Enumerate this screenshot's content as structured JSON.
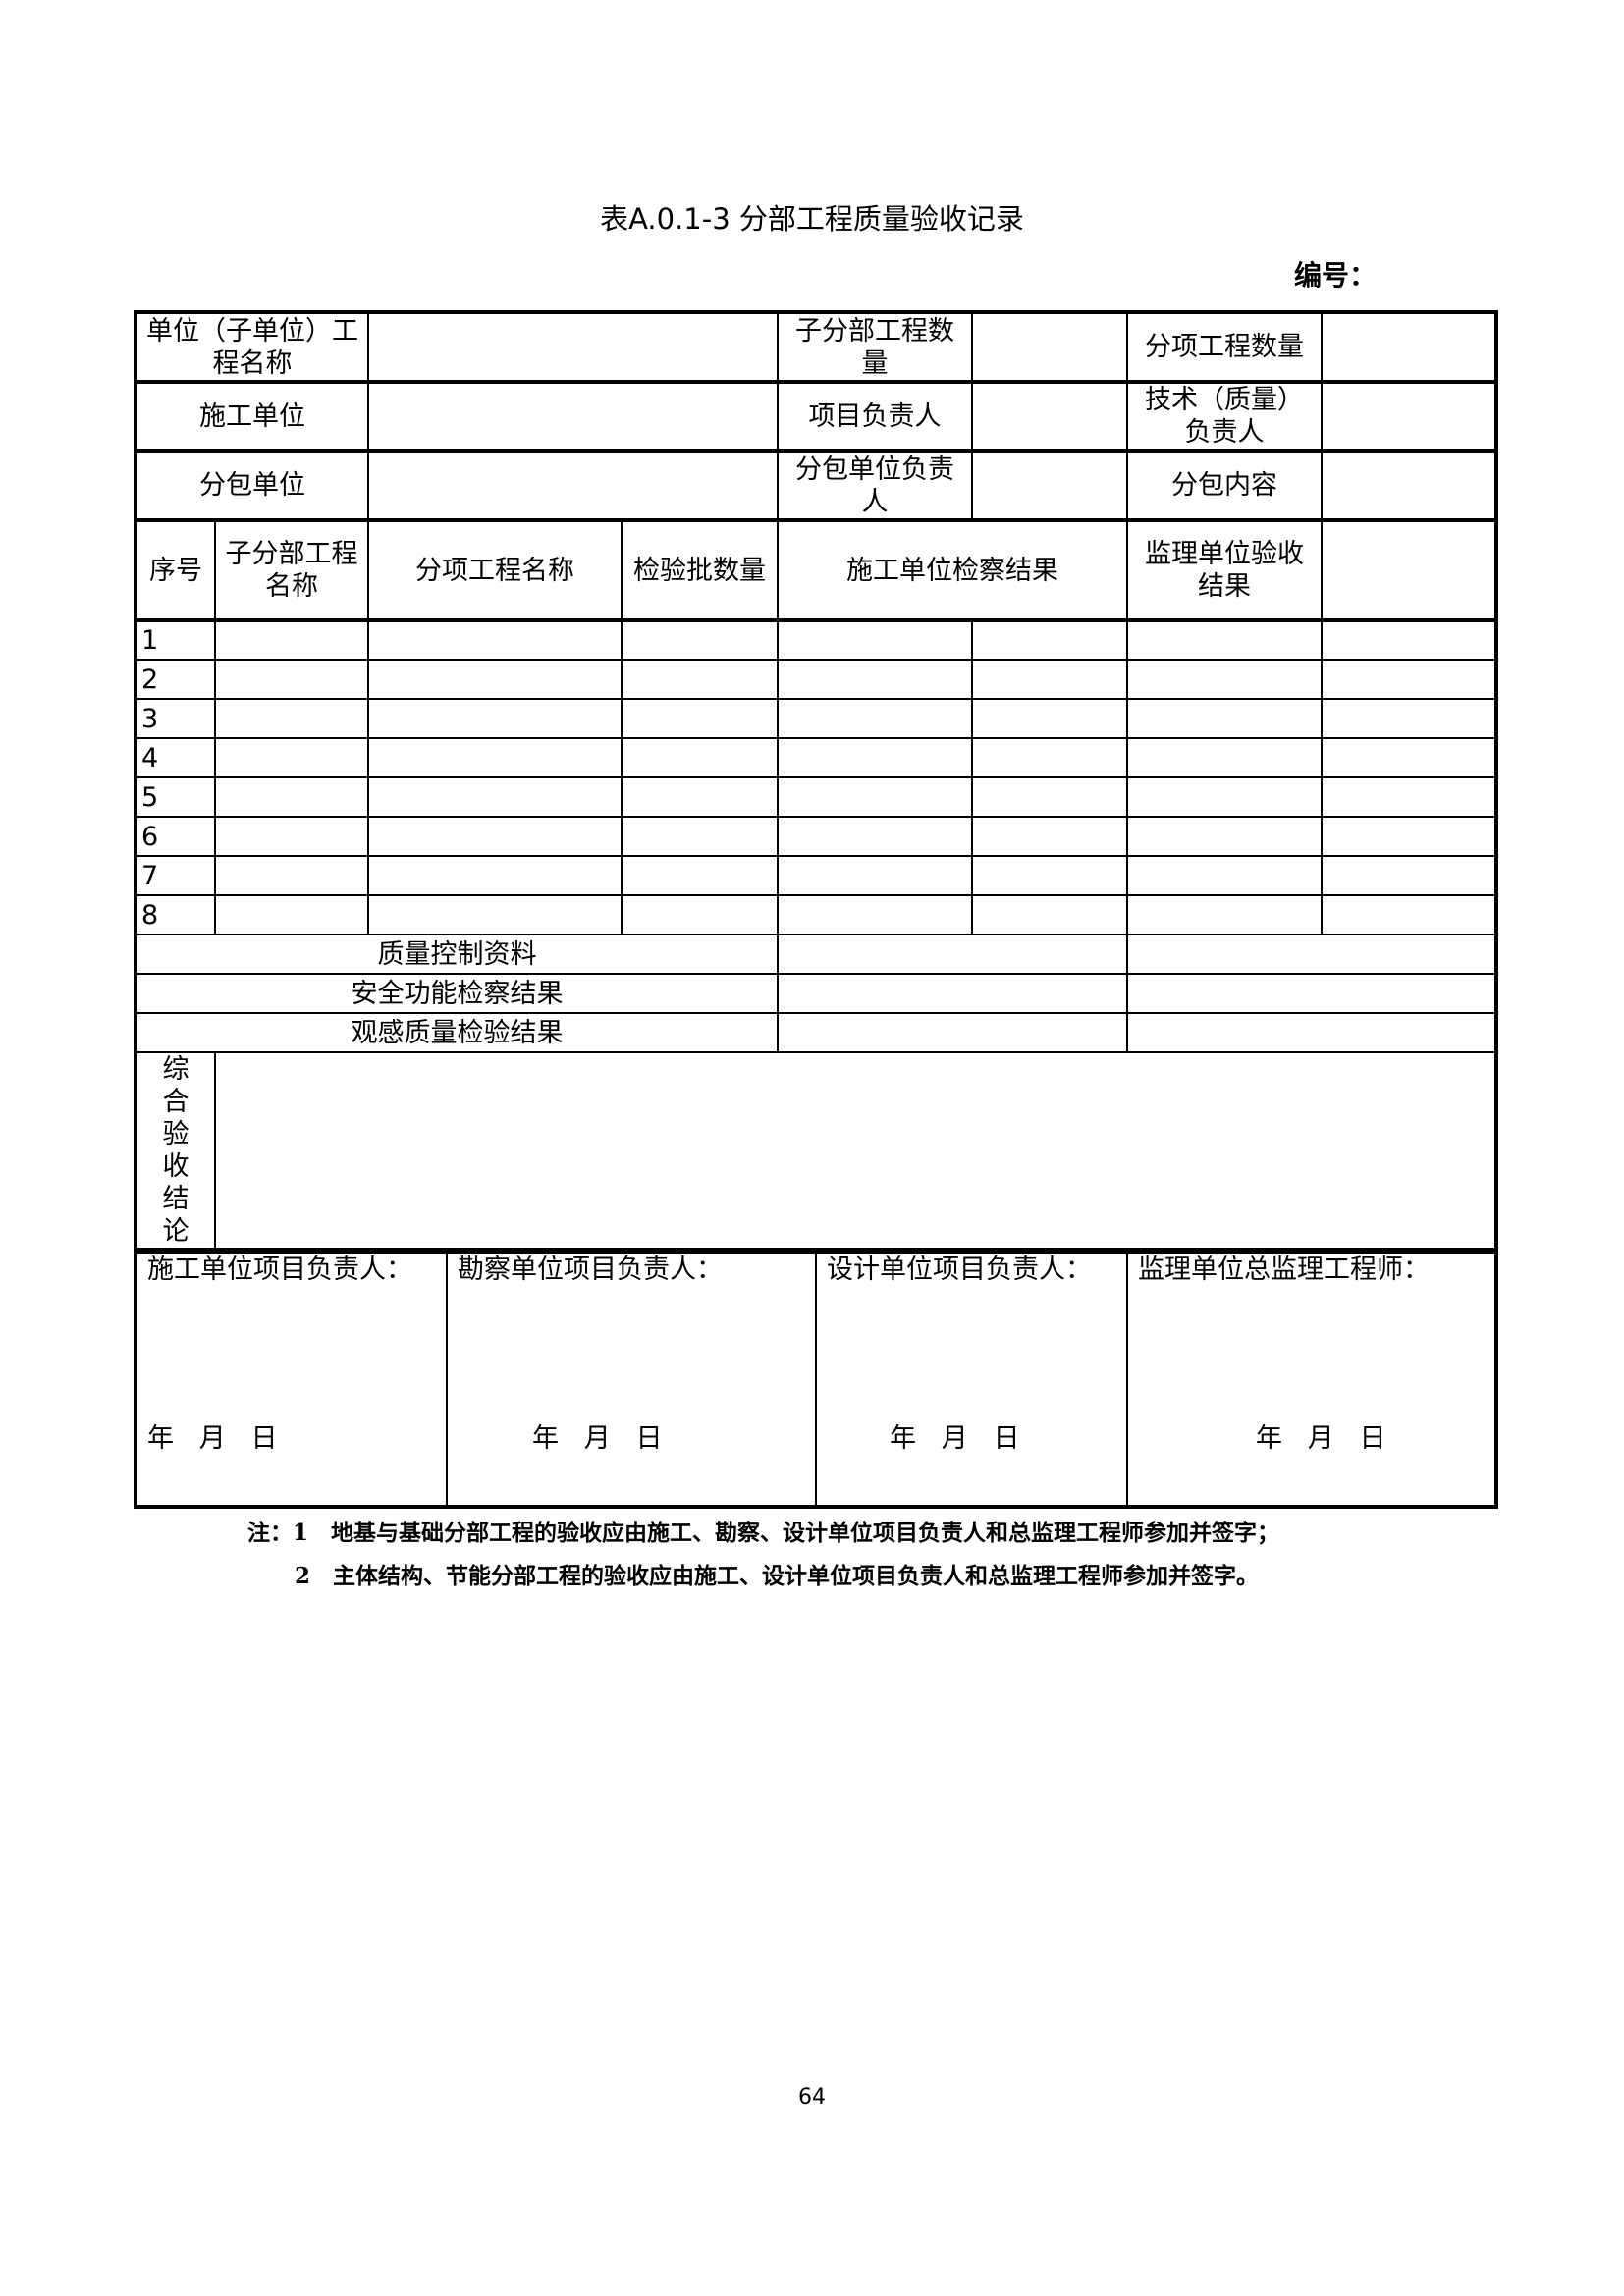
{
  "title": "表A.0.1-3 分部工程质量验收记录",
  "code_label": "编号：",
  "info_rows": [
    {
      "label1": "单位（子单位）工程名称",
      "label2": "子分部工程数量",
      "label3": "分项工程数量"
    },
    {
      "label1": "施工单位",
      "label2": "项目负责人",
      "label3": "技术（质量）负责人"
    },
    {
      "label1": "分包单位",
      "label2": "分包单位负责人",
      "label3": "分包内容"
    }
  ],
  "headers": {
    "seq": "序号",
    "sub_division": "子分部工程名称",
    "sub_item": "分项工程名称",
    "batch_count": "检验批数量",
    "contractor_result": "施工单位检察结果",
    "supervisor_result": "监理单位验收结果"
  },
  "row_numbers": [
    "1",
    "2",
    "3",
    "4",
    "5",
    "6",
    "7",
    "8"
  ],
  "summary_rows": [
    "质量控制资料",
    "安全功能检察结果",
    "观感质量检验结果"
  ],
  "conclusion_label": "综合验收结论",
  "signatures": [
    {
      "label": "施工单位项目负责人：",
      "date": "年   月   日"
    },
    {
      "label": "勘察单位项目负责人：",
      "date": "年   月   日"
    },
    {
      "label": "设计单位项目负责人：",
      "date": "年   月   日"
    },
    {
      "label": "监理单位总监理工程师：",
      "date": "年   月   日"
    }
  ],
  "notes": [
    "注：1　地基与基础分部工程的验收应由施工、勘察、设计单位项目负责人和总监理工程师参加并签字；",
    "2　主体结构、节能分部工程的验收应由施工、设计单位项目负责人和总监理工程师参加并签字。"
  ],
  "page_number": "64"
}
